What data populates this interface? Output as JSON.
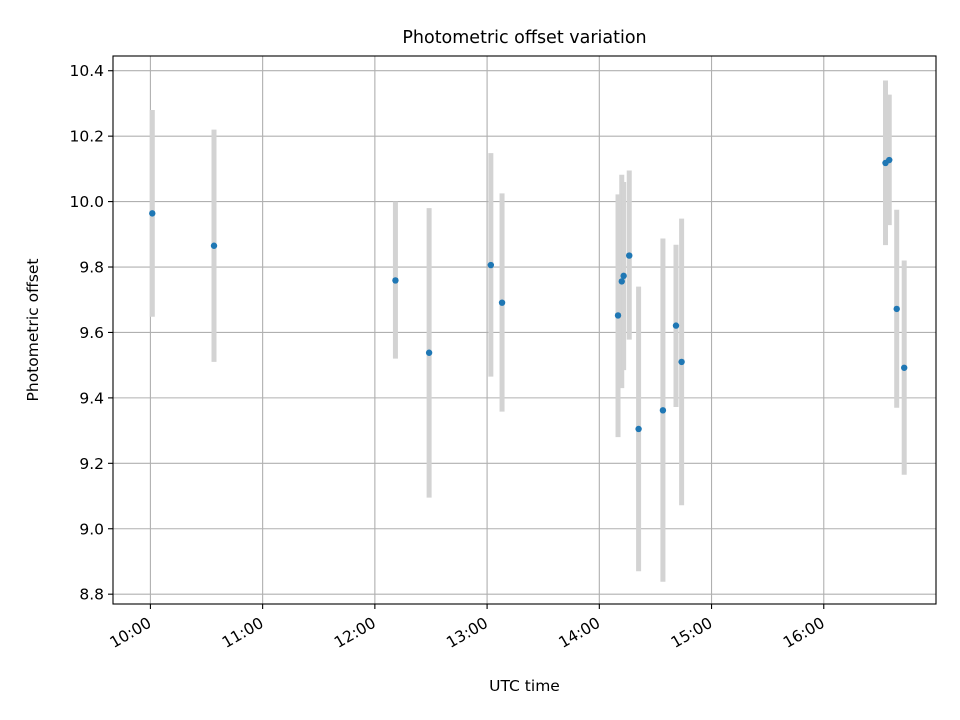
{
  "chart_data": {
    "type": "scatter",
    "title": "Photometric offset variation",
    "xlabel": "UTC time",
    "ylabel": "Photometric offset",
    "x_unit": "hours",
    "xlim": [
      "09:40",
      "17:00"
    ],
    "ylim": [
      8.77,
      10.445
    ],
    "x_ticks": [
      "10:00",
      "11:00",
      "12:00",
      "13:00",
      "14:00",
      "15:00",
      "16:00"
    ],
    "y_ticks": [
      "8.8",
      "9.0",
      "9.2",
      "9.4",
      "9.6",
      "9.8",
      "10.0",
      "10.2",
      "10.4"
    ],
    "grid": true,
    "colors": {
      "point": "#1f77b4",
      "errorbar": "#d3d3d3",
      "grid": "#b0b0b0"
    },
    "points": [
      {
        "t": "10:01",
        "y": 9.964,
        "lo": 9.648,
        "hi": 10.28
      },
      {
        "t": "10:34",
        "y": 9.865,
        "lo": 9.51,
        "hi": 10.22
      },
      {
        "t": "12:11",
        "y": 9.759,
        "lo": 9.52,
        "hi": 10.0
      },
      {
        "t": "12:29",
        "y": 9.538,
        "lo": 9.095,
        "hi": 9.98
      },
      {
        "t": "13:02",
        "y": 9.806,
        "lo": 9.465,
        "hi": 10.148
      },
      {
        "t": "13:08",
        "y": 9.691,
        "lo": 9.358,
        "hi": 10.025
      },
      {
        "t": "14:10",
        "y": 9.652,
        "lo": 9.28,
        "hi": 10.022
      },
      {
        "t": "14:12",
        "y": 9.756,
        "lo": 9.43,
        "hi": 10.082
      },
      {
        "t": "14:13",
        "y": 9.773,
        "lo": 9.485,
        "hi": 10.06
      },
      {
        "t": "14:16",
        "y": 9.835,
        "lo": 9.578,
        "hi": 10.095
      },
      {
        "t": "14:21",
        "y": 9.305,
        "lo": 8.87,
        "hi": 9.74
      },
      {
        "t": "14:34",
        "y": 9.362,
        "lo": 8.838,
        "hi": 9.887
      },
      {
        "t": "14:41",
        "y": 9.621,
        "lo": 9.372,
        "hi": 9.868
      },
      {
        "t": "14:44",
        "y": 9.51,
        "lo": 9.072,
        "hi": 9.948
      },
      {
        "t": "16:33",
        "y": 10.118,
        "lo": 9.867,
        "hi": 10.37
      },
      {
        "t": "16:35",
        "y": 10.127,
        "lo": 9.928,
        "hi": 10.327
      },
      {
        "t": "16:39",
        "y": 9.672,
        "lo": 9.37,
        "hi": 9.975
      },
      {
        "t": "16:43",
        "y": 9.492,
        "lo": 9.165,
        "hi": 9.82
      }
    ]
  }
}
